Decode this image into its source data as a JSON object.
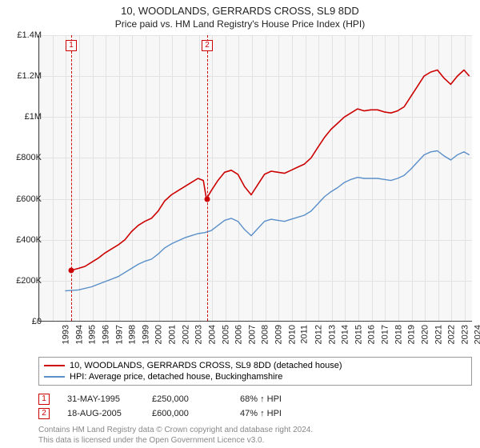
{
  "title": "10, WOODLANDS, GERRARDS CROSS, SL9 8DD",
  "subtitle": "Price paid vs. HM Land Registry's House Price Index (HPI)",
  "chart": {
    "type": "line",
    "background_color": "#f7f7f8",
    "grid_color": "#e2e2e4",
    "axis_color": "#444444",
    "x_range": [
      1993,
      2025.6
    ],
    "y_range": [
      0,
      1400000
    ],
    "y_ticks": [
      {
        "v": 0,
        "label": "£0"
      },
      {
        "v": 200000,
        "label": "£200K"
      },
      {
        "v": 400000,
        "label": "£400K"
      },
      {
        "v": 600000,
        "label": "£600K"
      },
      {
        "v": 800000,
        "label": "£800K"
      },
      {
        "v": 1000000,
        "label": "£1M"
      },
      {
        "v": 1200000,
        "label": "£1.2M"
      },
      {
        "v": 1400000,
        "label": "£1.4M"
      }
    ],
    "x_ticks": [
      1993,
      1994,
      1995,
      1996,
      1997,
      1998,
      1999,
      2000,
      2001,
      2002,
      2003,
      2004,
      2005,
      2006,
      2007,
      2008,
      2009,
      2010,
      2011,
      2012,
      2013,
      2014,
      2015,
      2016,
      2017,
      2018,
      2019,
      2020,
      2021,
      2022,
      2023,
      2024,
      2025
    ],
    "series": [
      {
        "id": "property",
        "label": "10, WOODLANDS, GERRARDS CROSS, SL9 8DD (detached house)",
        "color": "#cc0000",
        "line_width": 1.6,
        "points": [
          [
            1995.41,
            250000
          ],
          [
            1996.0,
            260000
          ],
          [
            1996.5,
            270000
          ],
          [
            1997.0,
            290000
          ],
          [
            1997.5,
            310000
          ],
          [
            1998.0,
            335000
          ],
          [
            1998.5,
            355000
          ],
          [
            1999.0,
            375000
          ],
          [
            1999.5,
            400000
          ],
          [
            2000.0,
            440000
          ],
          [
            2000.5,
            470000
          ],
          [
            2001.0,
            490000
          ],
          [
            2001.5,
            505000
          ],
          [
            2002.0,
            540000
          ],
          [
            2002.5,
            590000
          ],
          [
            2003.0,
            620000
          ],
          [
            2003.5,
            640000
          ],
          [
            2004.0,
            660000
          ],
          [
            2004.5,
            680000
          ],
          [
            2005.0,
            700000
          ],
          [
            2005.4,
            690000
          ],
          [
            2005.63,
            600000
          ],
          [
            2006.0,
            640000
          ],
          [
            2006.5,
            690000
          ],
          [
            2007.0,
            730000
          ],
          [
            2007.5,
            740000
          ],
          [
            2008.0,
            720000
          ],
          [
            2008.5,
            660000
          ],
          [
            2009.0,
            620000
          ],
          [
            2009.5,
            670000
          ],
          [
            2010.0,
            720000
          ],
          [
            2010.5,
            735000
          ],
          [
            2011.0,
            730000
          ],
          [
            2011.5,
            725000
          ],
          [
            2012.0,
            740000
          ],
          [
            2012.5,
            755000
          ],
          [
            2013.0,
            770000
          ],
          [
            2013.5,
            800000
          ],
          [
            2014.0,
            850000
          ],
          [
            2014.5,
            900000
          ],
          [
            2015.0,
            940000
          ],
          [
            2015.5,
            970000
          ],
          [
            2016.0,
            1000000
          ],
          [
            2016.5,
            1020000
          ],
          [
            2017.0,
            1040000
          ],
          [
            2017.5,
            1030000
          ],
          [
            2018.0,
            1035000
          ],
          [
            2018.5,
            1035000
          ],
          [
            2019.0,
            1025000
          ],
          [
            2019.5,
            1020000
          ],
          [
            2020.0,
            1030000
          ],
          [
            2020.5,
            1050000
          ],
          [
            2021.0,
            1100000
          ],
          [
            2021.5,
            1150000
          ],
          [
            2022.0,
            1200000
          ],
          [
            2022.5,
            1220000
          ],
          [
            2023.0,
            1230000
          ],
          [
            2023.5,
            1190000
          ],
          [
            2024.0,
            1160000
          ],
          [
            2024.5,
            1200000
          ],
          [
            2025.0,
            1230000
          ],
          [
            2025.4,
            1200000
          ]
        ]
      },
      {
        "id": "hpi",
        "label": "HPI: Average price, detached house, Buckinghamshire",
        "color": "#5a8fc8",
        "line_width": 1.4,
        "points": [
          [
            1995.0,
            150000
          ],
          [
            1996.0,
            155000
          ],
          [
            1997.0,
            170000
          ],
          [
            1998.0,
            195000
          ],
          [
            1999.0,
            220000
          ],
          [
            2000.0,
            260000
          ],
          [
            2000.5,
            280000
          ],
          [
            2001.0,
            295000
          ],
          [
            2001.5,
            305000
          ],
          [
            2002.0,
            330000
          ],
          [
            2002.5,
            360000
          ],
          [
            2003.0,
            380000
          ],
          [
            2003.5,
            395000
          ],
          [
            2004.0,
            410000
          ],
          [
            2004.5,
            420000
          ],
          [
            2005.0,
            430000
          ],
          [
            2005.5,
            435000
          ],
          [
            2006.0,
            445000
          ],
          [
            2006.5,
            470000
          ],
          [
            2007.0,
            495000
          ],
          [
            2007.5,
            505000
          ],
          [
            2008.0,
            490000
          ],
          [
            2008.5,
            450000
          ],
          [
            2009.0,
            420000
          ],
          [
            2009.5,
            455000
          ],
          [
            2010.0,
            490000
          ],
          [
            2010.5,
            500000
          ],
          [
            2011.0,
            495000
          ],
          [
            2011.5,
            490000
          ],
          [
            2012.0,
            500000
          ],
          [
            2012.5,
            510000
          ],
          [
            2013.0,
            520000
          ],
          [
            2013.5,
            540000
          ],
          [
            2014.0,
            575000
          ],
          [
            2014.5,
            610000
          ],
          [
            2015.0,
            635000
          ],
          [
            2015.5,
            655000
          ],
          [
            2016.0,
            680000
          ],
          [
            2016.5,
            695000
          ],
          [
            2017.0,
            705000
          ],
          [
            2017.5,
            700000
          ],
          [
            2018.0,
            700000
          ],
          [
            2018.5,
            700000
          ],
          [
            2019.0,
            695000
          ],
          [
            2019.5,
            690000
          ],
          [
            2020.0,
            700000
          ],
          [
            2020.5,
            715000
          ],
          [
            2021.0,
            745000
          ],
          [
            2021.5,
            780000
          ],
          [
            2022.0,
            815000
          ],
          [
            2022.5,
            830000
          ],
          [
            2023.0,
            835000
          ],
          [
            2023.5,
            810000
          ],
          [
            2024.0,
            790000
          ],
          [
            2024.5,
            815000
          ],
          [
            2025.0,
            830000
          ],
          [
            2025.4,
            815000
          ]
        ]
      }
    ],
    "sale_markers": [
      {
        "n": "1",
        "x": 1995.41,
        "y": 250000,
        "color": "#cc0000"
      },
      {
        "n": "2",
        "x": 2005.63,
        "y": 600000,
        "color": "#cc0000"
      }
    ]
  },
  "legend": {
    "items": [
      {
        "color": "#cc0000",
        "label": "10, WOODLANDS, GERRARDS CROSS, SL9 8DD (detached house)"
      },
      {
        "color": "#5a8fc8",
        "label": "HPI: Average price, detached house, Buckinghamshire"
      }
    ]
  },
  "sales": [
    {
      "n": "1",
      "date": "31-MAY-1995",
      "price": "£250,000",
      "pct": "68% ↑ HPI"
    },
    {
      "n": "2",
      "date": "18-AUG-2005",
      "price": "£600,000",
      "pct": "47% ↑ HPI"
    }
  ],
  "footer_line1": "Contains HM Land Registry data © Crown copyright and database right 2024.",
  "footer_line2": "This data is licensed under the Open Government Licence v3.0."
}
